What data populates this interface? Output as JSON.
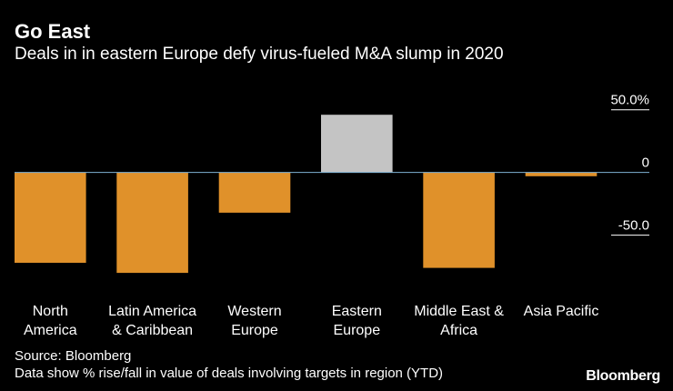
{
  "header": {
    "title": "Go East",
    "subtitle": "Deals in in eastern Europe defy virus-fueled M&A slump in 2020"
  },
  "footer": {
    "source": "Source: Bloomberg",
    "note": "Data show % rise/fall in value of deals involving targets in region (YTD)",
    "brand": "Bloomberg"
  },
  "chart_data": {
    "type": "bar",
    "title": "Go East",
    "subtitle": "Deals in in eastern Europe defy virus-fueled M&A slump in 2020",
    "categories": [
      [
        "North",
        "America"
      ],
      [
        "Latin America",
        "& Caribbean"
      ],
      [
        "Western",
        "Europe"
      ],
      [
        "Eastern",
        "Europe"
      ],
      [
        "Middle East &",
        "Africa"
      ],
      [
        "Asia Pacific"
      ]
    ],
    "values": [
      -72,
      -80,
      -32,
      46,
      -76,
      -3
    ],
    "highlight_index": 3,
    "colors": {
      "negative": "#e0912a",
      "highlight": "#c4c4c4",
      "baseline": "#7fb3d5",
      "tick": "#ffffff"
    },
    "y_ticks": [
      {
        "value": 50,
        "label": "50.0%"
      },
      {
        "value": 0,
        "label": "0"
      },
      {
        "value": -50,
        "label": "-50.0"
      }
    ],
    "ylim": [
      -93,
      65
    ],
    "xlabel": "",
    "ylabel": "",
    "y_axis_position": "right",
    "grid": false
  }
}
